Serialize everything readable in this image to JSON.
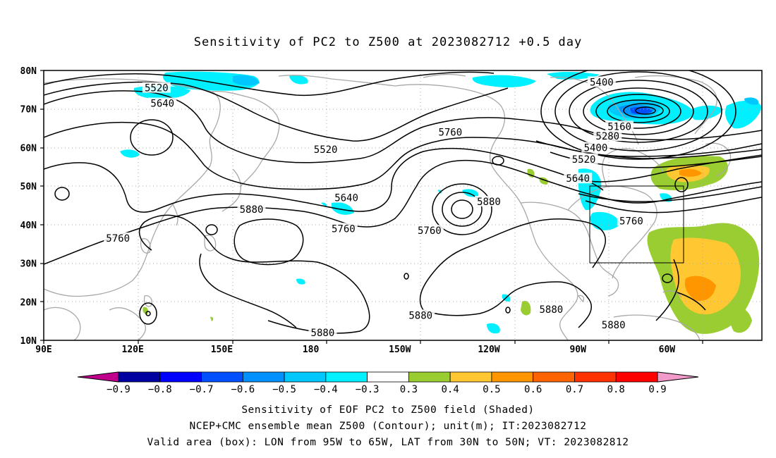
{
  "title": "Sensitivity of PC2 to Z500 at 2023082712 +0.5 day",
  "lon_labels": [
    "90E",
    "120E",
    "150E",
    "180",
    "150W",
    "120W",
    "90W",
    "60W"
  ],
  "lat_labels": [
    "80N",
    "70N",
    "60N",
    "50N",
    "40N",
    "30N",
    "20N",
    "10N"
  ],
  "contour_labels": [
    {
      "text": "5520",
      "value": 5520,
      "lon": 128,
      "lat": 75.5
    },
    {
      "text": "5640",
      "value": 5640,
      "lon": 130,
      "lat": 71.5
    },
    {
      "text": "5520",
      "value": 5520,
      "lon": -175,
      "lat": 59.5
    },
    {
      "text": "5760",
      "value": 5760,
      "lon": -133,
      "lat": 64
    },
    {
      "text": "5400",
      "value": 5400,
      "lon": -82,
      "lat": 77
    },
    {
      "text": "5160",
      "value": 5160,
      "lon": -76,
      "lat": 65.5
    },
    {
      "text": "5280",
      "value": 5280,
      "lon": -80,
      "lat": 63
    },
    {
      "text": "5400",
      "value": 5400,
      "lon": -84,
      "lat": 60
    },
    {
      "text": "5520",
      "value": 5520,
      "lon": -88,
      "lat": 57
    },
    {
      "text": "5640",
      "value": 5640,
      "lon": -90,
      "lat": 52
    },
    {
      "text": "5760",
      "value": 5760,
      "lon": -72,
      "lat": 41
    },
    {
      "text": "5640",
      "value": 5640,
      "lon": -168,
      "lat": 47
    },
    {
      "text": "5760",
      "value": 5760,
      "lon": -169,
      "lat": 39
    },
    {
      "text": "5760",
      "value": 5760,
      "lon": -140,
      "lat": 38.5
    },
    {
      "text": "5880",
      "value": 5880,
      "lon": -120,
      "lat": 46
    },
    {
      "text": "5880",
      "value": 5880,
      "lon": 160,
      "lat": 44
    },
    {
      "text": "5760",
      "value": 5760,
      "lon": 115,
      "lat": 36.5
    },
    {
      "text": "5880",
      "value": 5880,
      "lon": -143,
      "lat": 16.5
    },
    {
      "text": "5880",
      "value": 5880,
      "lon": -176,
      "lat": 12
    },
    {
      "text": "5880",
      "value": 5880,
      "lon": -99,
      "lat": 18
    },
    {
      "text": "5880",
      "value": 5880,
      "lon": -78,
      "lat": 14
    }
  ],
  "colorbar": {
    "labels": [
      "-0.9",
      "-0.8",
      "-0.7",
      "-0.6",
      "-0.5",
      "-0.4",
      "-0.3",
      "0.3",
      "0.4",
      "0.5",
      "0.6",
      "0.7",
      "0.8",
      "0.9"
    ],
    "colors": {
      "below": "#c0008c",
      "above": "#f29ac9"
    },
    "bins": [
      {
        "from": -0.9,
        "to": -0.8,
        "color": "#0000a0"
      },
      {
        "from": -0.8,
        "to": -0.7,
        "color": "#0000ff"
      },
      {
        "from": -0.7,
        "to": -0.6,
        "color": "#0050ff"
      },
      {
        "from": -0.6,
        "to": -0.5,
        "color": "#0090ff"
      },
      {
        "from": -0.5,
        "to": -0.4,
        "color": "#00c8ff"
      },
      {
        "from": -0.4,
        "to": -0.3,
        "color": "#00f0ff"
      },
      {
        "from": -0.3,
        "to": 0.3,
        "color": "#ffffff"
      },
      {
        "from": 0.3,
        "to": 0.4,
        "color": "#9acd32"
      },
      {
        "from": 0.4,
        "to": 0.5,
        "color": "#ffc832"
      },
      {
        "from": 0.5,
        "to": 0.6,
        "color": "#ff9600"
      },
      {
        "from": 0.6,
        "to": 0.7,
        "color": "#ff6400"
      },
      {
        "from": 0.7,
        "to": 0.8,
        "color": "#ff3200"
      },
      {
        "from": 0.8,
        "to": 0.9,
        "color": "#ff0000"
      }
    ]
  },
  "footer": {
    "line1": "Sensitivity of EOF PC2 to Z500 field (Shaded)",
    "line2": "NCEP+CMC ensemble mean Z500 (Contour); unit(m); IT:2023082712",
    "line3": "Valid area (box): LON from 95W to 65W, LAT from 30N to 50N; VT: 2023082812"
  }
}
